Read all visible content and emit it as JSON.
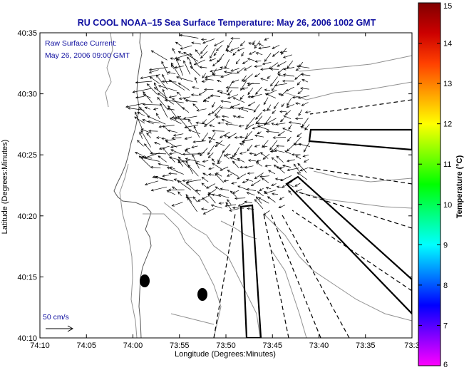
{
  "title": "RU COOL  NOAA–15  Sea Surface Temperature:  May 26, 2006 1002 GMT",
  "legend": {
    "line1": "Raw Surface Current:",
    "line2": "May 26, 2006 09:00 GMT",
    "scale_label": "50 cm/s"
  },
  "axes": {
    "xlabel": "Longitude (Degrees:Minutes)",
    "ylabel": "Latitude (Degrees:Minutes)",
    "xticks": [
      "74:10",
      "74:05",
      "74:00",
      "73:55",
      "73:50",
      "73:45",
      "73:40",
      "73:35",
      "73:3"
    ],
    "yticks": [
      "40:35",
      "40:30",
      "40:25",
      "40:20",
      "40:15",
      "40:10"
    ]
  },
  "colorbar": {
    "label": "Temperature (°C)",
    "ticks": [
      "15",
      "14",
      "13",
      "12",
      "11",
      "10",
      "9",
      "8",
      "7",
      "6"
    ],
    "min": 6,
    "max": 15,
    "colors": [
      "#ff00ff",
      "#8000ff",
      "#0000ff",
      "#0080ff",
      "#00ffff",
      "#00ff80",
      "#00ff00",
      "#80ff00",
      "#ffff00",
      "#ffa000",
      "#ff4000",
      "#cc0000",
      "#800000"
    ]
  },
  "map": {
    "land_color": "#ffffff",
    "contour_color": "#909090",
    "vector_color": "#000000"
  }
}
